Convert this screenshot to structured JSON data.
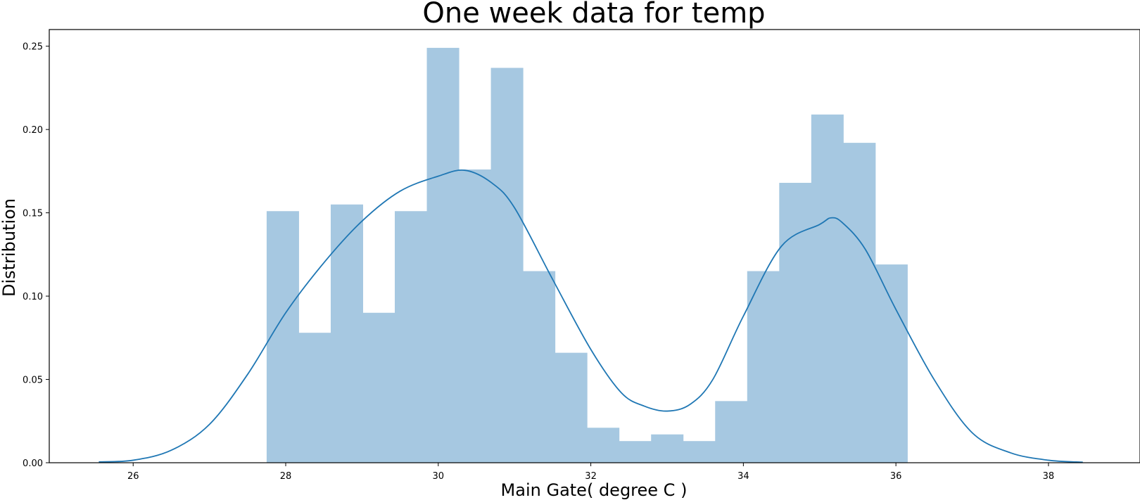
{
  "chart_data": {
    "type": "bar",
    "title": "One week data for temp",
    "xlabel": "Main Gate( degree C )",
    "ylabel": "Distribution",
    "xlim": [
      24.9,
      39.2
    ],
    "ylim": [
      0.0,
      0.26
    ],
    "xticks": [
      "26",
      "28",
      "30",
      "32",
      "34",
      "36",
      "38"
    ],
    "yticks": [
      "0.00",
      "0.05",
      "0.10",
      "0.15",
      "0.20",
      "0.25"
    ],
    "bar_color": "#a6c8e1",
    "line_color": "#1f77b4",
    "grid": false,
    "histogram": {
      "bin_edges": [
        27.75,
        28.17,
        28.59,
        29.01,
        29.43,
        29.85,
        30.27,
        30.69,
        31.11,
        31.53,
        31.95,
        32.37,
        32.79,
        33.21,
        33.63,
        34.05,
        34.47,
        34.89,
        35.31,
        35.73,
        36.15
      ],
      "values": [
        0.151,
        0.078,
        0.155,
        0.09,
        0.151,
        0.249,
        0.176,
        0.237,
        0.115,
        0.066,
        0.021,
        0.013,
        0.017,
        0.013,
        0.037,
        0.115,
        0.168,
        0.209,
        0.192,
        0.119
      ]
    },
    "kde": {
      "name": "",
      "x": [
        25.55,
        26.0,
        26.5,
        27.0,
        27.5,
        28.0,
        28.5,
        29.0,
        29.5,
        30.0,
        30.35,
        30.7,
        31.0,
        31.5,
        32.0,
        32.4,
        32.7,
        33.0,
        33.3,
        33.6,
        34.0,
        34.5,
        35.0,
        35.15,
        35.3,
        35.6,
        36.0,
        36.5,
        37.0,
        37.5,
        38.0,
        38.45
      ],
      "y": [
        0.0005,
        0.0015,
        0.0075,
        0.023,
        0.053,
        0.09,
        0.12,
        0.145,
        0.163,
        0.172,
        0.1755,
        0.168,
        0.153,
        0.11,
        0.068,
        0.042,
        0.034,
        0.031,
        0.035,
        0.05,
        0.088,
        0.13,
        0.143,
        0.147,
        0.144,
        0.128,
        0.092,
        0.05,
        0.018,
        0.006,
        0.0015,
        0.0003
      ]
    }
  }
}
